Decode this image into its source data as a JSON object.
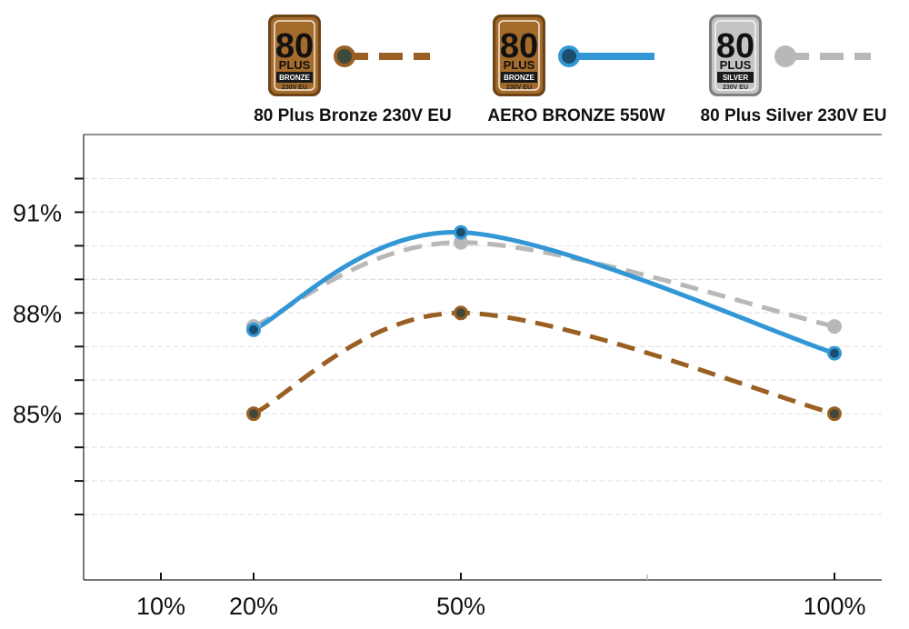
{
  "chart_data": {
    "type": "line",
    "x": [
      "20%",
      "50%",
      "100%"
    ],
    "x_ticks": [
      "10%",
      "20%",
      "50%",
      "100%"
    ],
    "y_ticks": [
      "85%",
      "88%",
      "91%"
    ],
    "ylim": [
      81,
      92.5
    ],
    "grid": true,
    "legend_position": "top",
    "series": [
      {
        "name": "80 Plus Bronze 230V EU",
        "values": [
          85,
          88,
          85
        ],
        "style": "dashed",
        "color": "#9a5f22",
        "marker_fill": "#3d4a3a",
        "badge": {
          "number": "80",
          "plus": "PLUS",
          "tier": "BRONZE",
          "region": "230V EU",
          "fill": "#a56b2b",
          "rim": "#6b4418"
        }
      },
      {
        "name": "AERO BRONZE 550W",
        "values": [
          87.5,
          90.4,
          86.8
        ],
        "style": "solid",
        "color": "#3397d6",
        "marker_fill": "#1b4e6e",
        "badge": {
          "number": "80",
          "plus": "PLUS",
          "tier": "BRONZE",
          "region": "230V EU",
          "fill": "#a56b2b",
          "rim": "#6b4418"
        }
      },
      {
        "name": "80 Plus Silver 230V EU",
        "values": [
          87.6,
          90.1,
          87.6
        ],
        "style": "dashed",
        "color": "#b8b8b8",
        "marker_fill": "#b8b8b8",
        "badge": {
          "number": "80",
          "plus": "PLUS",
          "tier": "SILVER",
          "region": "230V EU",
          "fill": "#c4c4c4",
          "rim": "#808080"
        }
      }
    ]
  }
}
